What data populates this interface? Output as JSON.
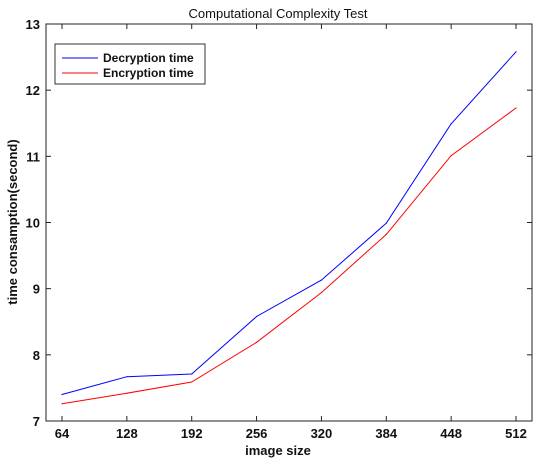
{
  "chart_data": {
    "type": "line",
    "title": "Computational Complexity Test",
    "xlabel": "image size",
    "ylabel": "time consamption(second)",
    "x": [
      64,
      128,
      192,
      256,
      320,
      384,
      448,
      512
    ],
    "xticks": [
      "64",
      "128",
      "192",
      "256",
      "320",
      "384",
      "448",
      "512"
    ],
    "yticks": [
      "7",
      "8",
      "9",
      "10",
      "11",
      "12",
      "13"
    ],
    "ylim": [
      7,
      13
    ],
    "grid": false,
    "legend_position": "top-left",
    "series": [
      {
        "name": "Decryption time",
        "color": "#0000ff",
        "values": [
          7.4,
          7.67,
          7.71,
          8.58,
          9.13,
          9.99,
          11.49,
          12.58
        ]
      },
      {
        "name": "Encryption time",
        "color": "#ff0000",
        "values": [
          7.26,
          7.42,
          7.59,
          8.19,
          8.94,
          9.82,
          11.01,
          11.73
        ]
      }
    ]
  }
}
